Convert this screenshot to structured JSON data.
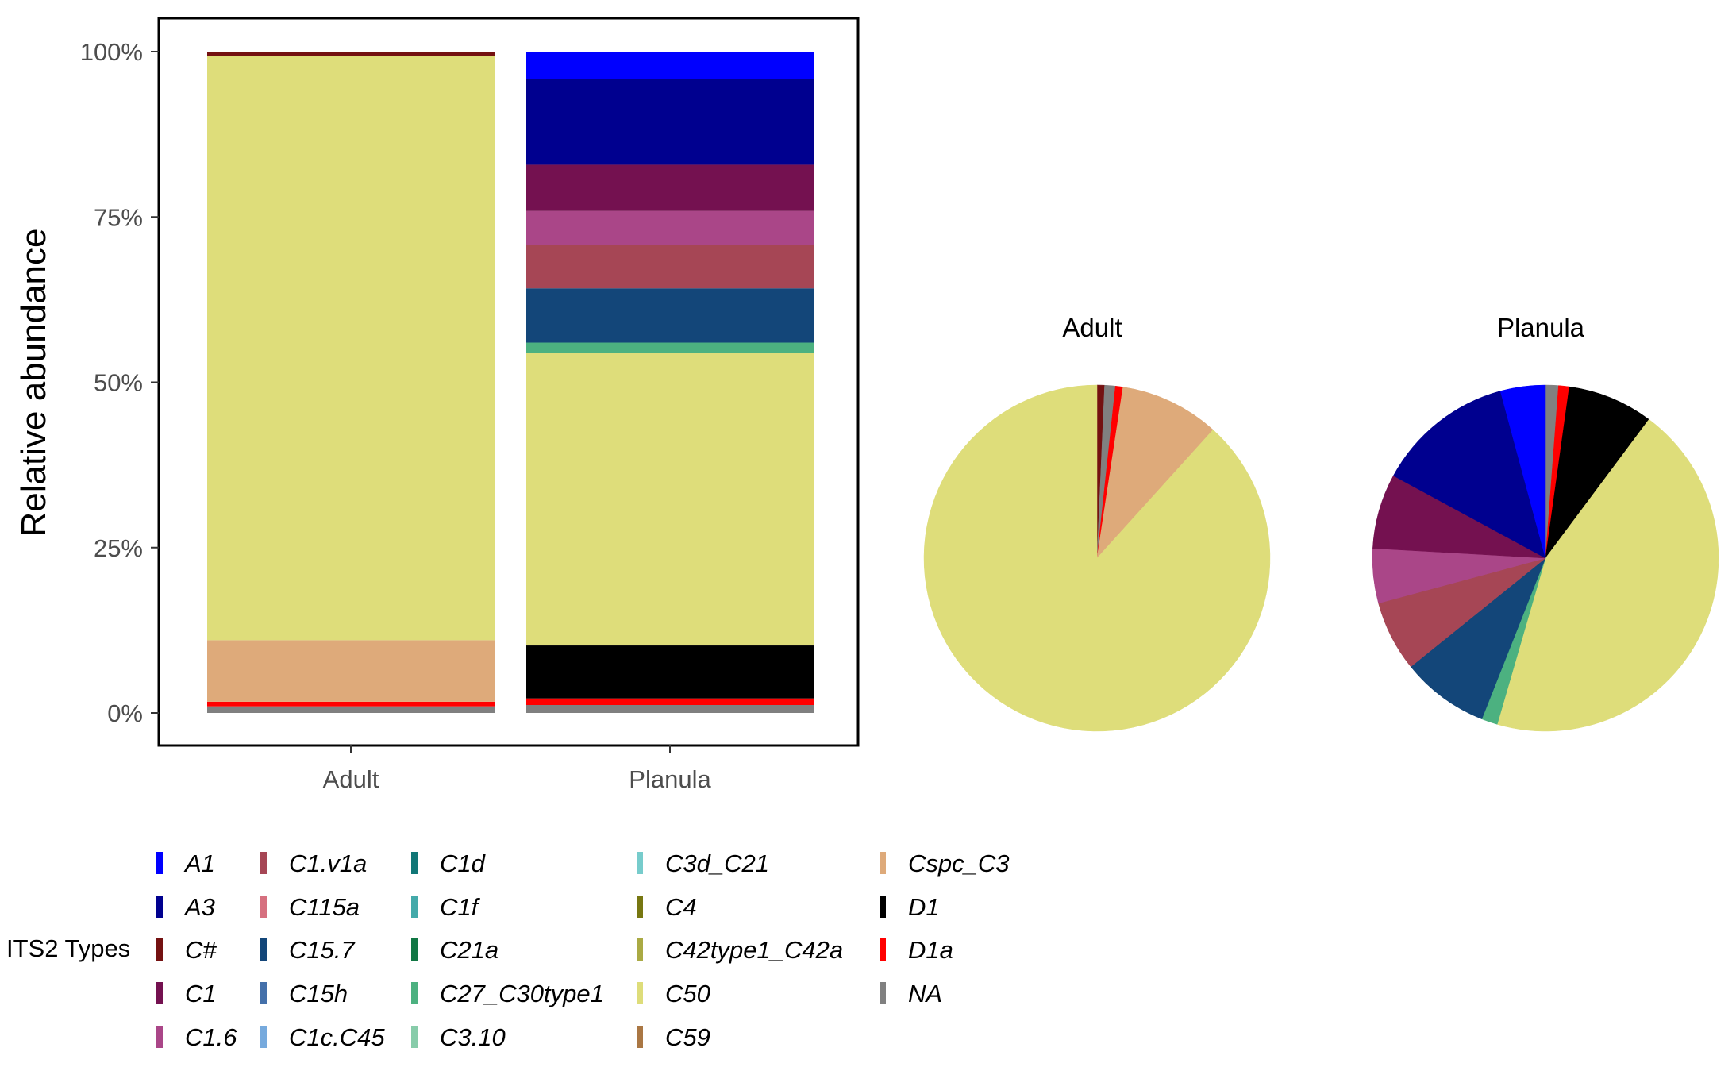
{
  "chart_data": [
    {
      "type": "bar",
      "stacked": true,
      "ylabel": "Relative abundance",
      "xlabel": "",
      "categories": [
        "Adult",
        "Planula"
      ],
      "ylim": [
        0,
        100
      ],
      "yticks": [
        "0%",
        "25%",
        "50%",
        "75%",
        "100%"
      ],
      "ytick_values": [
        0,
        25,
        50,
        75,
        100
      ],
      "grid": false,
      "series": [
        {
          "name": "NA",
          "color": "#808080",
          "values": [
            1.0,
            1.2
          ]
        },
        {
          "name": "D1a",
          "color": "#ff0000",
          "values": [
            0.7,
            1.0
          ]
        },
        {
          "name": "D1",
          "color": "#000000",
          "values": [
            0.0,
            8.0
          ]
        },
        {
          "name": "Cspc_C3",
          "color": "#deaa7a",
          "values": [
            9.3,
            0.0
          ]
        },
        {
          "name": "C50",
          "color": "#dedd7a",
          "values": [
            88.3,
            44.3
          ]
        },
        {
          "name": "C27_C30type1",
          "color": "#4cb180",
          "values": [
            0.0,
            1.5
          ]
        },
        {
          "name": "C15.7",
          "color": "#134679",
          "values": [
            0.0,
            8.2
          ]
        },
        {
          "name": "C1.v1a",
          "color": "#a64655",
          "values": [
            0.0,
            6.6
          ]
        },
        {
          "name": "C1.6",
          "color": "#aa4688",
          "values": [
            0.0,
            5.1
          ]
        },
        {
          "name": "C1",
          "color": "#741150",
          "values": [
            0.0,
            7.0
          ]
        },
        {
          "name": "A3",
          "color": "#00008f",
          "values": [
            0.0,
            12.9
          ]
        },
        {
          "name": "A1",
          "color": "#0000ff",
          "values": [
            0.0,
            4.2
          ]
        },
        {
          "name": "C#",
          "color": "#741111",
          "values": [
            0.7,
            0.0
          ]
        }
      ]
    },
    {
      "type": "pie",
      "title": "Adult",
      "slices": [
        {
          "name": "C#",
          "color": "#741111",
          "value": 0.7
        },
        {
          "name": "NA",
          "color": "#808080",
          "value": 1.0
        },
        {
          "name": "D1a",
          "color": "#ff0000",
          "value": 0.7
        },
        {
          "name": "Cspc_C3",
          "color": "#deaa7a",
          "value": 9.3
        },
        {
          "name": "C50",
          "color": "#dedd7a",
          "value": 88.3
        }
      ]
    },
    {
      "type": "pie",
      "title": "Planula",
      "slices": [
        {
          "name": "NA",
          "color": "#808080",
          "value": 1.2
        },
        {
          "name": "D1a",
          "color": "#ff0000",
          "value": 1.0
        },
        {
          "name": "D1",
          "color": "#000000",
          "value": 8.0
        },
        {
          "name": "C50",
          "color": "#dedd7a",
          "value": 44.3
        },
        {
          "name": "C27_C30type1",
          "color": "#4cb180",
          "value": 1.5
        },
        {
          "name": "C15.7",
          "color": "#134679",
          "value": 8.2
        },
        {
          "name": "C1.v1a",
          "color": "#a64655",
          "value": 6.6
        },
        {
          "name": "C1.6",
          "color": "#aa4688",
          "value": 5.1
        },
        {
          "name": "C1",
          "color": "#741150",
          "value": 7.0
        },
        {
          "name": "A3",
          "color": "#00008f",
          "value": 12.9
        },
        {
          "name": "A1",
          "color": "#0000ff",
          "value": 4.2
        }
      ]
    }
  ],
  "legend": {
    "title": "ITS2 Types",
    "placement": "bottom",
    "columns": [
      [
        {
          "name": "A1",
          "color": "#0000ff"
        },
        {
          "name": "A3",
          "color": "#00008f"
        },
        {
          "name": "C#",
          "color": "#741111"
        },
        {
          "name": "C1",
          "color": "#741150"
        },
        {
          "name": "C1.6",
          "color": "#aa4688"
        }
      ],
      [
        {
          "name": "C1.v1a",
          "color": "#a64655"
        },
        {
          "name": "C115a",
          "color": "#d6707f"
        },
        {
          "name": "C15.7",
          "color": "#134679"
        },
        {
          "name": "C15h",
          "color": "#4470aa"
        },
        {
          "name": "C1c.C45",
          "color": "#77aadd"
        }
      ],
      [
        {
          "name": "C1d",
          "color": "#117777"
        },
        {
          "name": "C1f",
          "color": "#44aaaa"
        },
        {
          "name": "C21a",
          "color": "#117744"
        },
        {
          "name": "C27_C30type1",
          "color": "#4cb180"
        },
        {
          "name": "C3.10",
          "color": "#88ccaa"
        }
      ],
      [
        {
          "name": "C3d_C21",
          "color": "#77cccc"
        },
        {
          "name": "C4",
          "color": "#777711"
        },
        {
          "name": "C42type1_C42a",
          "color": "#aaaa44"
        },
        {
          "name": "C50",
          "color": "#dedd7a"
        },
        {
          "name": "C59",
          "color": "#aa7744"
        }
      ],
      [
        {
          "name": "Cspc_C3",
          "color": "#deaa7a"
        },
        {
          "name": "D1",
          "color": "#000000"
        },
        {
          "name": "D1a",
          "color": "#ff0000"
        },
        {
          "name": "NA",
          "color": "#808080"
        }
      ]
    ]
  }
}
